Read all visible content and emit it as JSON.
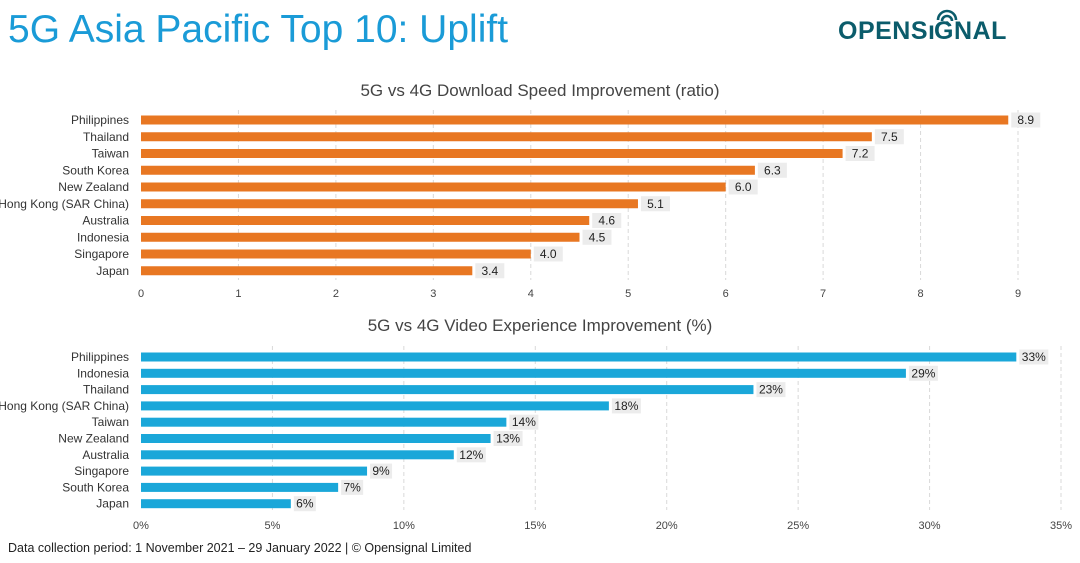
{
  "title": "5G Asia Pacific Top 10: Uplift",
  "logo": {
    "text_a": "OPENS",
    "text_b": "GNAL"
  },
  "footer": "Data collection period: 1 November 2021 – 29 January 2022  |  © Opensignal Limited",
  "colors": {
    "title": "#1a9bd7",
    "download_bar": "#e87722",
    "video_bar": "#1aa7d9",
    "logo": "#0b5c6b",
    "grid": "#d9d9d9",
    "label_bg": "#ececec"
  },
  "chart_data": [
    {
      "type": "bar",
      "orientation": "horizontal",
      "title": "5G vs 4G Download Speed Improvement (ratio)",
      "categories": [
        "Philippines",
        "Thailand",
        "Taiwan",
        "South Korea",
        "New Zealand",
        "Hong Kong (SAR China)",
        "Australia",
        "Indonesia",
        "Singapore",
        "Japan"
      ],
      "values": [
        8.9,
        7.5,
        7.2,
        6.3,
        6.0,
        5.1,
        4.6,
        4.5,
        4.0,
        3.4
      ],
      "value_labels": [
        "8.9",
        "7.5",
        "7.2",
        "6.3",
        "6.0",
        "5.1",
        "4.6",
        "4.5",
        "4.0",
        "3.4"
      ],
      "xlim": [
        0,
        9
      ],
      "ticks": [
        0,
        1,
        2,
        3,
        4,
        5,
        6,
        7,
        8,
        9
      ],
      "tick_labels": [
        "0",
        "1",
        "2",
        "3",
        "4",
        "5",
        "6",
        "7",
        "8",
        "9"
      ],
      "grid": true,
      "xlabel": "",
      "ylabel": ""
    },
    {
      "type": "bar",
      "orientation": "horizontal",
      "title": "5G vs 4G Video Experience Improvement (%)",
      "categories": [
        "Philippines",
        "Indonesia",
        "Thailand",
        "Hong Kong (SAR China)",
        "Taiwan",
        "New Zealand",
        "Australia",
        "Singapore",
        "South Korea",
        "Japan"
      ],
      "values": [
        33.3,
        29.1,
        23.3,
        17.8,
        13.9,
        13.3,
        11.9,
        8.6,
        7.5,
        5.7
      ],
      "value_labels": [
        "33%",
        "29%",
        "23%",
        "18%",
        "14%",
        "13%",
        "12%",
        "9%",
        "7%",
        "6%"
      ],
      "xlim": [
        0,
        35
      ],
      "ticks": [
        0,
        5,
        10,
        15,
        20,
        25,
        30,
        35
      ],
      "tick_labels": [
        "0%",
        "5%",
        "10%",
        "15%",
        "20%",
        "25%",
        "30%",
        "35%"
      ],
      "grid": true,
      "xlabel": "",
      "ylabel": ""
    }
  ]
}
